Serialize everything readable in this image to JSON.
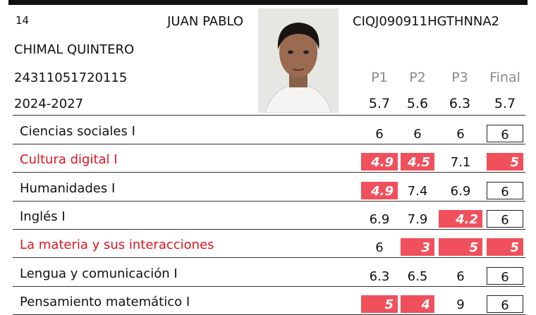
{
  "header": {
    "number": "14",
    "first_names": "JUAN PABLO",
    "last_names": "CHIMAL QUINTERO",
    "id": "24311051720115",
    "period": "2024-2027",
    "curp": "CIQJ090911HGTHNNA2"
  },
  "table": {
    "columns": [
      "P1",
      "P2",
      "P3",
      "Final"
    ],
    "averages": [
      5.7,
      5.6,
      6.3,
      5.7
    ],
    "rows": [
      {
        "subject": "Ciencias sociales I",
        "grades": [
          6,
          6,
          6,
          6
        ]
      },
      {
        "subject": "Cultura digital I",
        "grades": [
          4.9,
          4.5,
          7.1,
          5
        ]
      },
      {
        "subject": "Humanidades I",
        "grades": [
          4.9,
          7.4,
          6.9,
          6
        ]
      },
      {
        "subject": "Inglés I",
        "grades": [
          6.9,
          7.9,
          4.2,
          6
        ]
      },
      {
        "subject": "La materia y sus interacciones",
        "grades": [
          6,
          3,
          5,
          5
        ]
      },
      {
        "subject": "Lengua y comunicación I",
        "grades": [
          6.3,
          6.5,
          6,
          6
        ]
      },
      {
        "subject": "Pensamiento matemático I",
        "grades": [
          5,
          4,
          9,
          6
        ]
      }
    ]
  }
}
